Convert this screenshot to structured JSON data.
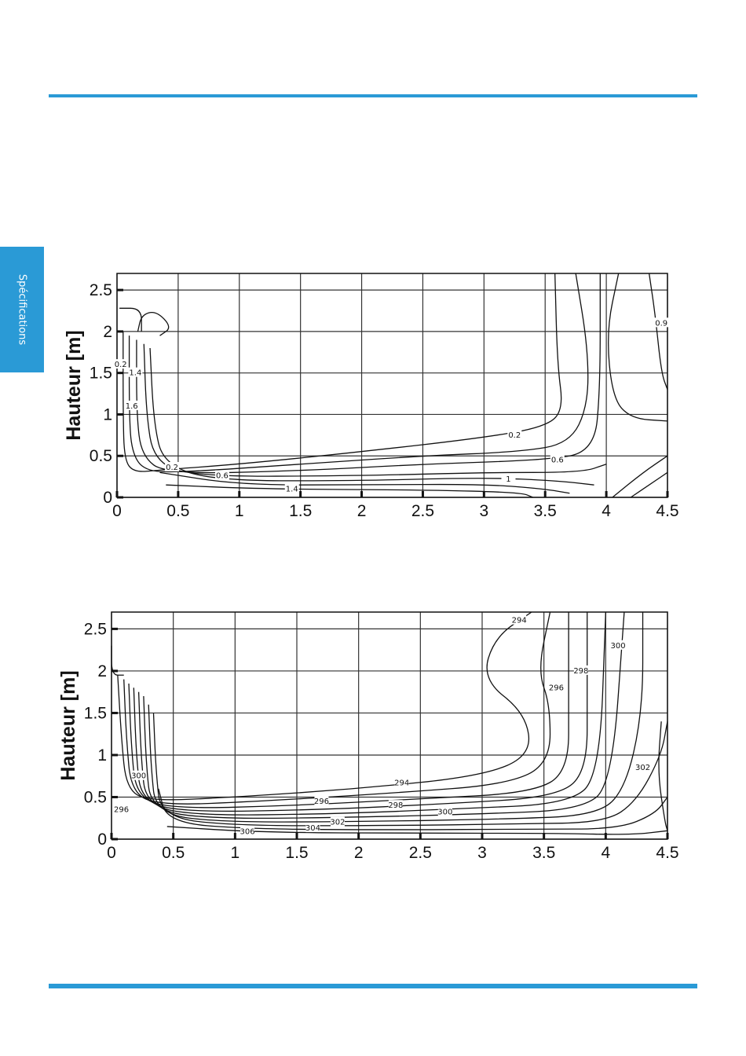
{
  "colors": {
    "accent": "#2a9ad6",
    "contour": "#111111",
    "grid": "#333333"
  },
  "sidebar_tab": {
    "label": "Spécifications"
  },
  "chart_data": [
    {
      "type": "line",
      "subtype": "contour",
      "xlabel": "",
      "ylabel": "Hauteur [m]",
      "xlim": [
        0,
        4.5
      ],
      "ylim": [
        0,
        2.7
      ],
      "xticks": [
        "0",
        "0.5",
        "1",
        "1.5",
        "2",
        "2.5",
        "3",
        "3.5",
        "4",
        "4.5"
      ],
      "yticks": [
        "0",
        "0.5",
        "1",
        "1.5",
        "2",
        "2.5"
      ],
      "grid": true,
      "contour_labels": [
        {
          "text": "0.2",
          "x": 3.25,
          "y": 0.75
        },
        {
          "text": "0.6",
          "x": 3.6,
          "y": 0.45
        },
        {
          "text": "0.2",
          "x": 0.45,
          "y": 0.36
        },
        {
          "text": "0.6",
          "x": 0.86,
          "y": 0.26
        },
        {
          "text": "1",
          "x": 3.2,
          "y": 0.22
        },
        {
          "text": "1.4",
          "x": 1.43,
          "y": 0.1
        },
        {
          "text": "0.9",
          "x": 4.45,
          "y": 2.1
        },
        {
          "text": "0.2",
          "x": 0.03,
          "y": 1.6
        },
        {
          "text": "1.4",
          "x": 0.15,
          "y": 1.5
        },
        {
          "text": "1.6",
          "x": 0.12,
          "y": 1.1
        }
      ]
    },
    {
      "type": "line",
      "subtype": "contour",
      "xlabel": "",
      "ylabel": "Hauteur [m]",
      "xlim": [
        0,
        4.5
      ],
      "ylim": [
        0,
        2.7
      ],
      "xticks": [
        "0",
        "0.5",
        "1",
        "1.5",
        "2",
        "2.5",
        "3",
        "3.5",
        "4",
        "4.5"
      ],
      "yticks": [
        "0",
        "0.5",
        "1",
        "1.5",
        "2",
        "2.5"
      ],
      "grid": true,
      "contour_labels": [
        {
          "text": "294",
          "x": 3.3,
          "y": 2.6
        },
        {
          "text": "296",
          "x": 3.6,
          "y": 1.8
        },
        {
          "text": "298",
          "x": 3.8,
          "y": 2.0
        },
        {
          "text": "300",
          "x": 4.1,
          "y": 2.3
        },
        {
          "text": "302",
          "x": 4.3,
          "y": 0.85
        },
        {
          "text": "294",
          "x": 2.35,
          "y": 0.67
        },
        {
          "text": "296",
          "x": 1.7,
          "y": 0.45
        },
        {
          "text": "298",
          "x": 2.3,
          "y": 0.4
        },
        {
          "text": "300",
          "x": 2.7,
          "y": 0.32
        },
        {
          "text": "302",
          "x": 1.83,
          "y": 0.2
        },
        {
          "text": "304",
          "x": 1.63,
          "y": 0.13
        },
        {
          "text": "306",
          "x": 1.1,
          "y": 0.09
        },
        {
          "text": "300",
          "x": 0.22,
          "y": 0.75
        },
        {
          "text": "296",
          "x": 0.08,
          "y": 0.35
        }
      ]
    }
  ]
}
